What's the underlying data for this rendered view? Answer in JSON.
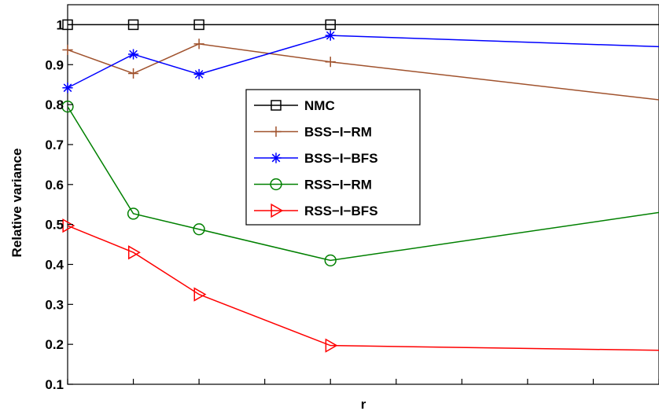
{
  "chart_data": {
    "type": "line",
    "title": "",
    "xlabel": "r",
    "ylabel": "Relative variance",
    "x": [
      1,
      2,
      3,
      5,
      10
    ],
    "xlim": [
      1,
      10
    ],
    "ylim": [
      0.1,
      1.05
    ],
    "yticks": [
      0.1,
      0.2,
      0.3,
      0.4,
      0.5,
      0.6,
      0.7,
      0.8,
      0.9,
      1
    ],
    "ytick_labels": [
      "0.1",
      "0.2",
      "0.3",
      "0.4",
      "0.5",
      "0.6",
      "0.7",
      "0.8",
      "0.9",
      "1"
    ],
    "xticks": [
      1,
      2,
      3,
      4,
      5,
      6,
      7,
      8,
      9,
      10
    ],
    "grid": false,
    "legend_position": "center",
    "series": [
      {
        "name": "NMC",
        "color": "#000000",
        "marker": "square",
        "values": [
          1.0,
          1.0,
          1.0,
          1.0,
          1.0
        ]
      },
      {
        "name": "BSS−I−RM",
        "color": "#A0522D",
        "marker": "plus",
        "values": [
          0.937,
          0.878,
          0.952,
          0.907,
          0.812
        ]
      },
      {
        "name": "BSS−I−BFS",
        "color": "#0000FF",
        "marker": "star",
        "values": [
          0.842,
          0.926,
          0.876,
          0.973,
          0.945
        ]
      },
      {
        "name": "RSS−I−RM",
        "color": "#008000",
        "marker": "circle",
        "values": [
          0.795,
          0.527,
          0.488,
          0.41,
          0.53
        ]
      },
      {
        "name": "RSS−I−BFS",
        "color": "#FF0000",
        "marker": "triangle-right",
        "values": [
          0.497,
          0.43,
          0.325,
          0.197,
          0.185
        ]
      }
    ]
  }
}
